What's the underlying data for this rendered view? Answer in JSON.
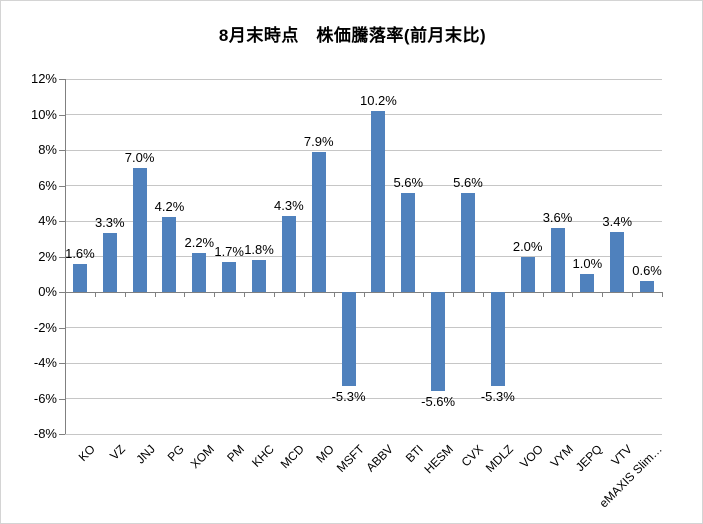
{
  "chart_data": {
    "type": "bar",
    "title": "8月末時点　株価騰落率(前月末比)",
    "categories": [
      "KO",
      "VZ",
      "JNJ",
      "PG",
      "XOM",
      "PM",
      "KHC",
      "MCD",
      "MO",
      "MSFT",
      "ABBV",
      "BTI",
      "HESM",
      "CVX",
      "MDLZ",
      "VOO",
      "VYM",
      "JEPQ",
      "VTV",
      "eMAXIS Slim…"
    ],
    "values": [
      1.6,
      3.3,
      7.0,
      4.2,
      2.2,
      1.7,
      1.8,
      4.3,
      7.9,
      -5.3,
      10.2,
      5.6,
      -5.6,
      5.6,
      -5.3,
      2.0,
      3.6,
      1.0,
      3.4,
      0.6
    ],
    "value_labels": [
      "1.6%",
      "3.3%",
      "7.0%",
      "4.2%",
      "2.2%",
      "1.7%",
      "1.8%",
      "4.3%",
      "7.9%",
      "-5.3%",
      "10.2%",
      "5.6%",
      "-5.6%",
      "5.6%",
      "-5.3%",
      "2.0%",
      "3.6%",
      "1.0%",
      "3.4%",
      "0.6%"
    ],
    "xlabel": "",
    "ylabel": "",
    "ylim": [
      -8,
      12
    ],
    "ytick_step": 2,
    "ytick_labels": [
      "12%",
      "10%",
      "8%",
      "6%",
      "4%",
      "2%",
      "0%",
      "-2%",
      "-4%",
      "-6%",
      "-8%"
    ],
    "grid": true,
    "legend": "none",
    "data_labels": "outside-end",
    "colors": {
      "bar": "#4F81BD",
      "gridline": "#C6C6C6",
      "axis": "#808080",
      "text": "#000000",
      "chart_border": "#D4D4D4",
      "background": "#FFFFFF"
    }
  }
}
